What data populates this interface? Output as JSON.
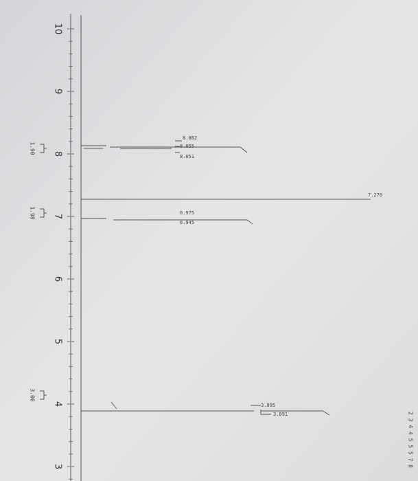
{
  "axis": {
    "ticks": [
      "10",
      "9",
      "8",
      "7",
      "6",
      "5",
      "4",
      "3"
    ]
  },
  "peaks": [
    {
      "labels": [
        "8.082",
        "8.055",
        "8.051"
      ]
    },
    {
      "labels": [
        "7.270"
      ]
    },
    {
      "labels": [
        "6.975",
        "6.945"
      ]
    },
    {
      "labels": [
        "3.895",
        "3.891"
      ]
    }
  ],
  "integrals": [
    "1.90",
    "1.98",
    "3.00"
  ],
  "corner_text": "2 3 4 4 5 5 5 7 8"
}
